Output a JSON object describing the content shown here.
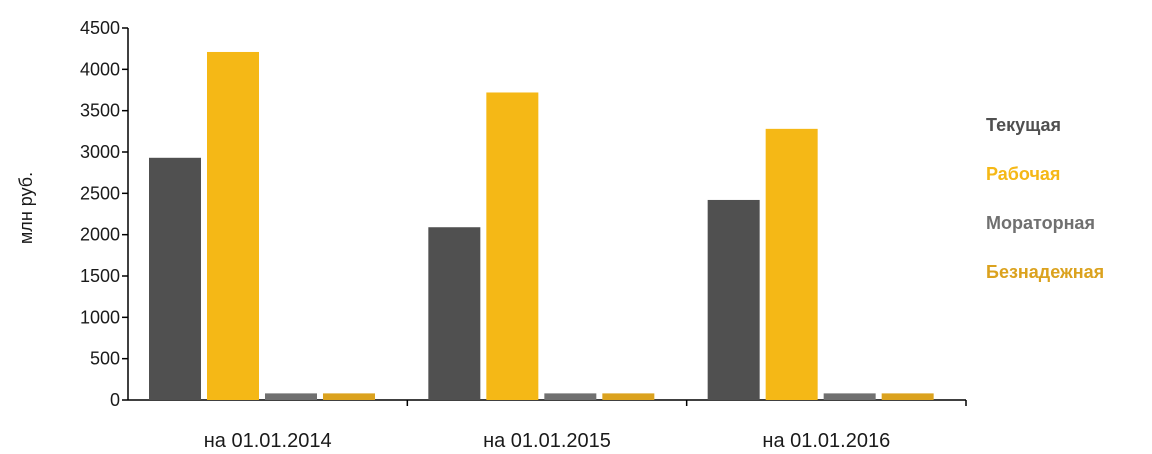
{
  "chart_data": {
    "type": "bar",
    "title": "",
    "xlabel": "",
    "ylabel": "млн руб.",
    "ylim": [
      0,
      4500
    ],
    "yticks": [
      0,
      500,
      1000,
      1500,
      2000,
      2500,
      3000,
      3500,
      4000,
      4500
    ],
    "grid": false,
    "legend_position": "right",
    "categories": [
      "на 01.01.2014",
      "на 01.01.2015",
      "на 01.01.2016"
    ],
    "series": [
      {
        "name": "Текущая",
        "color": "#505050",
        "values": [
          2930,
          2090,
          2420
        ]
      },
      {
        "name": "Рабочая",
        "color": "#F5B816",
        "values": [
          4210,
          3720,
          3280
        ]
      },
      {
        "name": "Мораторная",
        "color": "#707070",
        "values": [
          80,
          80,
          80
        ]
      },
      {
        "name": "Безнадежная",
        "color": "#DBA21E",
        "values": [
          80,
          80,
          80
        ]
      }
    ]
  }
}
